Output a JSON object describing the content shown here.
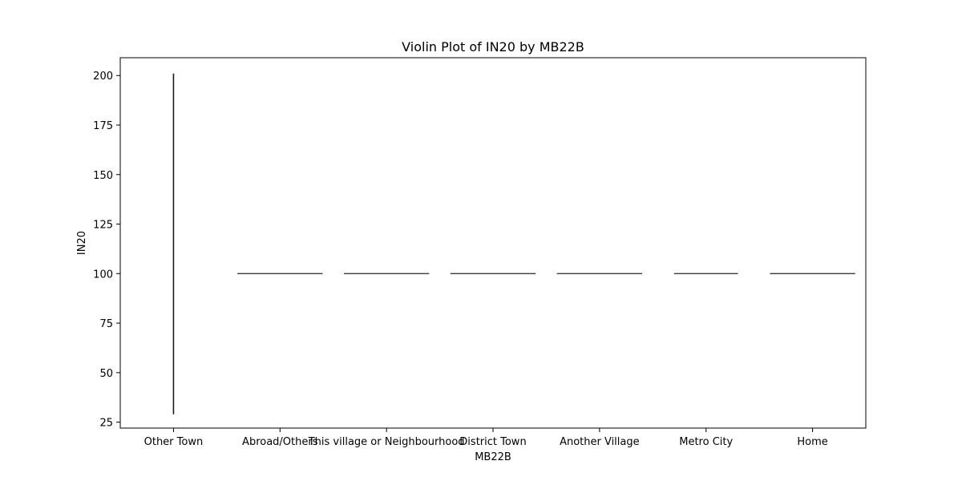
{
  "chart_data": {
    "type": "violin",
    "title": "Violin Plot of IN20 by MB22B",
    "xlabel": "MB22B",
    "ylabel": "IN20",
    "categories": [
      "Other Town",
      "Abroad/Others",
      "This village or Neighbourhood",
      "District Town",
      "Another Village",
      "Metro City",
      "Home"
    ],
    "ylim": [
      22,
      209
    ],
    "yticks": [
      25,
      50,
      75,
      100,
      125,
      150,
      175,
      200
    ],
    "violins": [
      {
        "category": "Other Town",
        "min": 29,
        "max": 201,
        "center": 100,
        "spread": 0
      },
      {
        "category": "Abroad/Others",
        "min": 100,
        "max": 100,
        "center": 100,
        "spread": 0.8
      },
      {
        "category": "This village or Neighbourhood",
        "min": 100,
        "max": 100,
        "center": 100,
        "spread": 0.8
      },
      {
        "category": "District Town",
        "min": 100,
        "max": 100,
        "center": 100,
        "spread": 0.8
      },
      {
        "category": "Another Village",
        "min": 100,
        "max": 100,
        "center": 100,
        "spread": 0.8
      },
      {
        "category": "Metro City",
        "min": 100,
        "max": 100,
        "center": 100,
        "spread": 0.6
      },
      {
        "category": "Home",
        "min": 100,
        "max": 100,
        "center": 100,
        "spread": 0.8
      }
    ],
    "grid": false,
    "legend": "none"
  }
}
